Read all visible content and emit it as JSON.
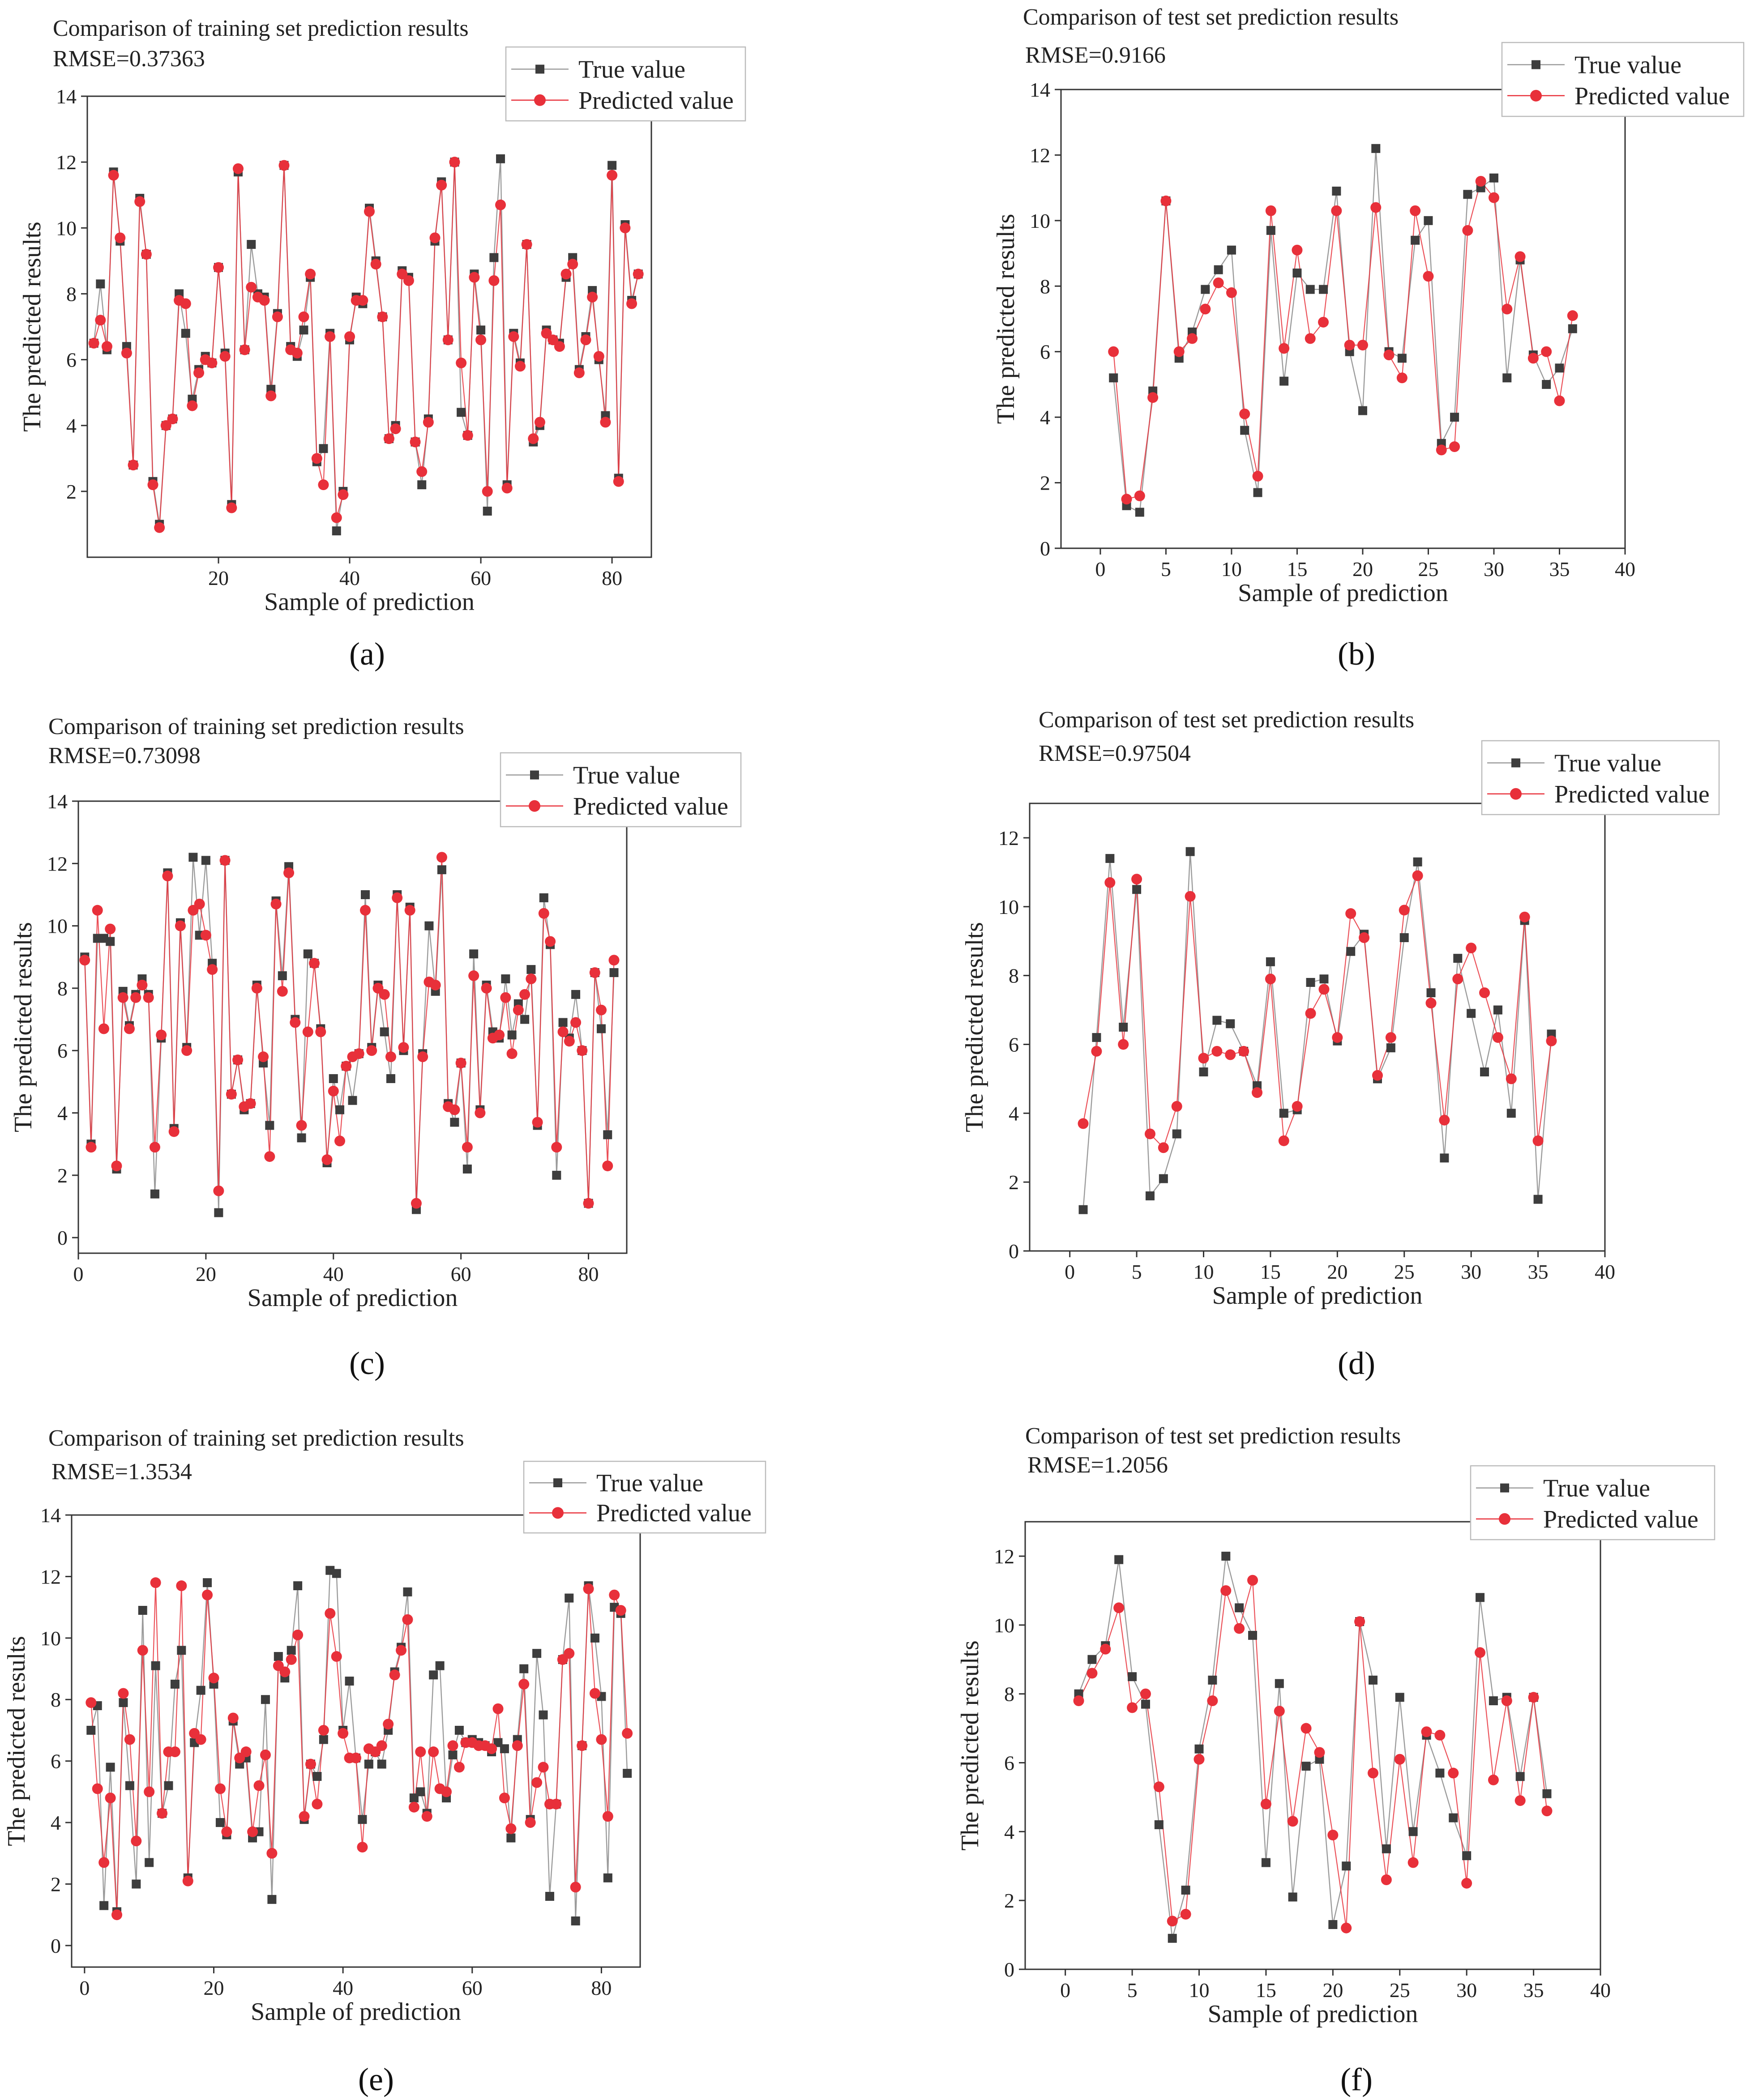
{
  "colors": {
    "true_value": "#3d3d3d",
    "predicted_value": "#e8303a",
    "true_line": "#9a9a9a"
  },
  "chart_data": [
    {
      "type": "line",
      "panel": "(a)",
      "title": "Comparison of training set prediction results",
      "rmse": "RMSE=0.37363",
      "xlabel": "Sample of prediction",
      "ylabel": "The predicted results",
      "xlim": [
        0,
        86
      ],
      "ylim": [
        0,
        14
      ],
      "xticks": [
        20,
        40,
        60,
        80
      ],
      "yticks": [
        2,
        4,
        6,
        8,
        10,
        12,
        14
      ],
      "legend": [
        "True value",
        "Predicted value"
      ],
      "legend_position": "top-right",
      "series": [
        {
          "name": "True value",
          "marker": "square",
          "values": [
            6.5,
            8.3,
            6.3,
            11.7,
            9.6,
            6.4,
            2.8,
            10.9,
            9.2,
            2.3,
            1.0,
            4.0,
            4.2,
            8.0,
            6.8,
            4.8,
            5.7,
            6.1,
            5.9,
            8.8,
            6.2,
            1.6,
            11.7,
            6.3,
            9.5,
            8.0,
            7.9,
            5.1,
            7.4,
            11.9,
            6.4,
            6.1,
            6.9,
            8.5,
            2.9,
            3.3,
            6.8,
            0.8,
            2.0,
            6.6,
            7.9,
            7.7,
            10.6,
            9.0,
            7.3,
            3.6,
            4.0,
            8.7,
            8.5,
            3.5,
            2.2,
            4.2,
            9.6,
            11.4,
            6.6,
            12.0,
            4.4,
            3.7,
            8.6,
            6.9,
            1.4,
            9.1,
            12.1,
            2.2,
            6.8,
            5.9,
            9.5,
            3.5,
            4.0,
            6.9,
            6.6,
            6.5,
            8.5,
            9.1,
            5.7,
            6.7,
            8.1,
            6.0,
            4.3,
            11.9,
            2.4,
            10.1,
            7.8,
            8.6
          ]
        },
        {
          "name": "Predicted value",
          "marker": "circle",
          "values": [
            6.5,
            7.2,
            6.4,
            11.6,
            9.7,
            6.2,
            2.8,
            10.8,
            9.2,
            2.2,
            0.9,
            4.0,
            4.2,
            7.8,
            7.7,
            4.6,
            5.6,
            6.0,
            5.9,
            8.8,
            6.1,
            1.5,
            11.8,
            6.3,
            8.2,
            7.9,
            7.8,
            4.9,
            7.3,
            11.9,
            6.3,
            6.2,
            7.3,
            8.6,
            3.0,
            2.2,
            6.7,
            1.2,
            1.9,
            6.7,
            7.8,
            7.8,
            10.5,
            8.9,
            7.3,
            3.6,
            3.9,
            8.6,
            8.4,
            3.5,
            2.6,
            4.1,
            9.7,
            11.3,
            6.6,
            12.0,
            5.9,
            3.7,
            8.5,
            6.6,
            2.0,
            8.4,
            10.7,
            2.1,
            6.7,
            5.8,
            9.5,
            3.6,
            4.1,
            6.8,
            6.6,
            6.4,
            8.6,
            8.9,
            5.6,
            6.6,
            7.9,
            6.1,
            4.1,
            11.6,
            2.3,
            10.0,
            7.7,
            8.6
          ]
        }
      ]
    },
    {
      "type": "line",
      "panel": "(b)",
      "title": "Comparison of test set prediction results",
      "rmse": "RMSE=0.9166",
      "xlabel": "Sample of prediction",
      "ylabel": "The predicted results",
      "xlim": [
        -3,
        40
      ],
      "ylim": [
        0,
        14
      ],
      "xticks": [
        0,
        5,
        10,
        15,
        20,
        25,
        30,
        35,
        40
      ],
      "yticks": [
        0,
        2,
        4,
        6,
        8,
        10,
        12,
        14
      ],
      "legend": [
        "True value",
        "Predicted value"
      ],
      "legend_position": "top-right",
      "series": [
        {
          "name": "True value",
          "marker": "square",
          "values": [
            5.2,
            1.3,
            1.1,
            4.8,
            10.6,
            5.8,
            6.6,
            7.9,
            8.5,
            9.1,
            3.6,
            1.7,
            9.7,
            5.1,
            8.4,
            7.9,
            7.9,
            10.9,
            6.0,
            4.2,
            12.2,
            6.0,
            5.8,
            9.4,
            10.0,
            3.2,
            4.0,
            10.8,
            11.0,
            11.3,
            5.2,
            8.8,
            5.9,
            5.0,
            5.5,
            6.7
          ]
        },
        {
          "name": "Predicted value",
          "marker": "circle",
          "values": [
            6.0,
            1.5,
            1.6,
            4.6,
            10.6,
            6.0,
            6.4,
            7.3,
            8.1,
            7.8,
            4.1,
            2.2,
            10.3,
            6.1,
            9.1,
            6.4,
            6.9,
            10.3,
            6.2,
            6.2,
            10.4,
            5.9,
            5.2,
            10.3,
            8.3,
            3.0,
            3.1,
            9.7,
            11.2,
            10.7,
            7.3,
            8.9,
            5.8,
            6.0,
            4.5,
            7.1
          ]
        }
      ]
    },
    {
      "type": "line",
      "panel": "(c)",
      "title": "Comparison of training set prediction results",
      "rmse": "RMSE=0.73098",
      "xlabel": "Sample of prediction",
      "ylabel": "The predicted results",
      "xlim": [
        0,
        86
      ],
      "ylim": [
        -0.5,
        14
      ],
      "xticks": [
        0,
        20,
        40,
        60,
        80
      ],
      "yticks": [
        0,
        2,
        4,
        6,
        8,
        10,
        12,
        14
      ],
      "legend": [
        "True value",
        "Predicted value"
      ],
      "legend_position": "top-right",
      "series": [
        {
          "name": "True value",
          "marker": "square",
          "values": [
            9.0,
            3.0,
            9.6,
            9.6,
            9.5,
            2.2,
            7.9,
            6.8,
            7.8,
            8.3,
            7.8,
            1.4,
            6.4,
            11.7,
            3.5,
            10.1,
            6.1,
            12.2,
            9.7,
            12.1,
            8.8,
            0.8,
            12.1,
            4.6,
            5.7,
            4.1,
            4.3,
            8.1,
            5.6,
            3.6,
            10.8,
            8.4,
            11.9,
            7.0,
            3.2,
            9.1,
            8.8,
            6.7,
            2.4,
            5.1,
            4.1,
            5.5,
            4.4,
            5.9,
            11.0,
            6.1,
            8.1,
            6.6,
            5.1,
            11.0,
            6.0,
            10.6,
            0.9,
            5.9,
            10.0,
            7.9,
            11.8,
            4.3,
            3.7,
            5.6,
            2.2,
            9.1,
            4.1,
            8.1,
            6.6,
            6.4,
            8.3,
            6.5,
            7.5,
            7.0,
            8.6,
            3.6,
            10.9,
            9.4,
            2.0,
            6.9,
            6.4,
            7.8,
            6.0,
            1.1,
            8.5,
            6.7,
            3.3,
            8.5
          ]
        },
        {
          "name": "Predicted value",
          "marker": "circle",
          "values": [
            8.9,
            2.9,
            10.5,
            6.7,
            9.9,
            2.3,
            7.7,
            6.7,
            7.7,
            8.1,
            7.7,
            2.9,
            6.5,
            11.6,
            3.4,
            10.0,
            6.0,
            10.5,
            10.7,
            9.7,
            8.6,
            1.5,
            12.1,
            4.6,
            5.7,
            4.2,
            4.3,
            8.0,
            5.8,
            2.6,
            10.7,
            7.9,
            11.7,
            6.9,
            3.6,
            6.6,
            8.8,
            6.6,
            2.5,
            4.7,
            3.1,
            5.5,
            5.8,
            5.9,
            10.5,
            6.0,
            8.0,
            7.8,
            5.8,
            10.9,
            6.1,
            10.5,
            1.1,
            5.8,
            8.2,
            8.1,
            12.2,
            4.2,
            4.1,
            5.6,
            2.9,
            8.4,
            4.0,
            8.0,
            6.4,
            6.5,
            7.7,
            5.9,
            7.3,
            7.8,
            8.3,
            3.7,
            10.4,
            9.5,
            2.9,
            6.6,
            6.3,
            6.9,
            6.0,
            1.1,
            8.5,
            7.3,
            2.3,
            8.9
          ]
        }
      ]
    },
    {
      "type": "line",
      "panel": "(d)",
      "title": "Comparison of test set prediction results",
      "rmse": "RMSE=0.97504",
      "xlabel": "Sample of prediction",
      "ylabel": "The predicted results",
      "xlim": [
        -3,
        40
      ],
      "ylim": [
        0,
        13
      ],
      "xticks": [
        0,
        5,
        10,
        15,
        20,
        25,
        30,
        35,
        40
      ],
      "yticks": [
        0,
        2,
        4,
        6,
        8,
        10,
        12
      ],
      "legend": [
        "True value",
        "Predicted value"
      ],
      "legend_position": "top-right",
      "series": [
        {
          "name": "True value",
          "marker": "square",
          "values": [
            1.2,
            6.2,
            11.4,
            6.5,
            10.5,
            1.6,
            2.1,
            3.4,
            11.6,
            5.2,
            6.7,
            6.6,
            5.8,
            4.8,
            8.4,
            4.0,
            4.1,
            7.8,
            7.9,
            6.1,
            8.7,
            9.2,
            5.0,
            5.9,
            9.1,
            11.3,
            7.5,
            2.7,
            8.5,
            6.9,
            5.2,
            7.0,
            4.0,
            9.6,
            1.5,
            6.3
          ]
        },
        {
          "name": "Predicted value",
          "marker": "circle",
          "values": [
            3.7,
            5.8,
            10.7,
            6.0,
            10.8,
            3.4,
            3.0,
            4.2,
            10.3,
            5.6,
            5.8,
            5.7,
            5.8,
            4.6,
            7.9,
            3.2,
            4.2,
            6.9,
            7.6,
            6.2,
            9.8,
            9.1,
            5.1,
            6.2,
            9.9,
            10.9,
            7.2,
            3.8,
            7.9,
            8.8,
            7.5,
            6.2,
            5.0,
            9.7,
            3.2,
            6.1
          ]
        }
      ]
    },
    {
      "type": "line",
      "panel": "(e)",
      "title": "Comparison of training set prediction results",
      "rmse": "RMSE=1.3534",
      "xlabel": "Sample of prediction",
      "ylabel": "The predicted results",
      "xlim": [
        -2,
        86
      ],
      "ylim": [
        -0.7,
        14
      ],
      "xticks": [
        0,
        20,
        40,
        60,
        80
      ],
      "yticks": [
        0,
        2,
        4,
        6,
        8,
        10,
        12,
        14
      ],
      "legend": [
        "True value",
        "Predicted value"
      ],
      "legend_position": "top-right",
      "series": [
        {
          "name": "True value",
          "marker": "square",
          "values": [
            7.0,
            7.8,
            1.3,
            5.8,
            1.1,
            7.9,
            5.2,
            2.0,
            10.9,
            2.7,
            9.1,
            4.3,
            5.2,
            8.5,
            9.6,
            2.2,
            6.6,
            8.3,
            11.8,
            8.5,
            4.0,
            3.6,
            7.3,
            5.9,
            6.1,
            3.5,
            3.7,
            8.0,
            1.5,
            9.4,
            8.7,
            9.6,
            11.7,
            4.1,
            5.9,
            5.5,
            6.7,
            12.2,
            12.1,
            7.0,
            8.6,
            6.1,
            4.1,
            5.9,
            6.3,
            5.9,
            7.0,
            8.9,
            9.7,
            11.5,
            4.8,
            5.0,
            4.3,
            8.8,
            9.1,
            4.8,
            6.2,
            7.0,
            6.6,
            6.7,
            6.6,
            6.5,
            6.3,
            6.6,
            6.4,
            3.5,
            6.7,
            9.0,
            4.1,
            9.5,
            7.5,
            1.6,
            4.6,
            9.3,
            11.3,
            0.8,
            6.5,
            11.7,
            10.0,
            8.1,
            2.2,
            11.0,
            10.8,
            5.6
          ]
        },
        {
          "name": "Predicted value",
          "marker": "circle",
          "values": [
            7.9,
            5.1,
            2.7,
            4.8,
            1.0,
            8.2,
            6.7,
            3.4,
            9.6,
            5.0,
            11.8,
            4.3,
            6.3,
            6.3,
            11.7,
            2.1,
            6.9,
            6.7,
            11.4,
            8.7,
            5.1,
            3.7,
            7.4,
            6.1,
            6.3,
            3.7,
            5.2,
            6.2,
            3.0,
            9.1,
            8.9,
            9.3,
            10.1,
            4.2,
            5.9,
            4.6,
            7.0,
            10.8,
            9.4,
            6.9,
            6.1,
            6.1,
            3.2,
            6.4,
            6.3,
            6.5,
            7.2,
            8.8,
            9.6,
            10.6,
            4.5,
            6.3,
            4.2,
            6.3,
            5.1,
            5.0,
            6.5,
            5.8,
            6.6,
            6.6,
            6.5,
            6.5,
            6.4,
            7.7,
            4.8,
            3.8,
            6.5,
            8.5,
            4.0,
            5.3,
            5.8,
            4.6,
            4.6,
            9.3,
            9.5,
            1.9,
            6.5,
            11.6,
            8.2,
            6.7,
            4.2,
            11.4,
            10.9,
            6.9
          ]
        }
      ]
    },
    {
      "type": "line",
      "panel": "(f)",
      "title": "Comparison of test set prediction results",
      "rmse": "RMSE=1.2056",
      "xlabel": "Sample of prediction",
      "ylabel": "The predicted results",
      "xlim": [
        -3,
        40
      ],
      "ylim": [
        0,
        13
      ],
      "xticks": [
        0,
        5,
        10,
        15,
        20,
        25,
        30,
        35,
        40
      ],
      "yticks": [
        0,
        2,
        4,
        6,
        8,
        10,
        12
      ],
      "legend": [
        "True value",
        "Predicted value"
      ],
      "legend_position": "top-right",
      "series": [
        {
          "name": "True value",
          "marker": "square",
          "values": [
            8.0,
            9.0,
            9.4,
            11.9,
            8.5,
            7.7,
            4.2,
            0.9,
            2.3,
            6.4,
            8.4,
            12.0,
            10.5,
            9.7,
            3.1,
            8.3,
            2.1,
            5.9,
            6.1,
            1.3,
            3.0,
            10.1,
            8.4,
            3.5,
            7.9,
            4.0,
            6.8,
            5.7,
            4.4,
            3.3,
            10.8,
            7.8,
            7.9,
            5.6,
            7.9,
            5.1
          ]
        },
        {
          "name": "Predicted value",
          "marker": "circle",
          "values": [
            7.8,
            8.6,
            9.3,
            10.5,
            7.6,
            8.0,
            5.3,
            1.4,
            1.6,
            6.1,
            7.8,
            11.0,
            9.9,
            11.3,
            4.8,
            7.5,
            4.3,
            7.0,
            6.3,
            3.9,
            1.2,
            10.1,
            5.7,
            2.6,
            6.1,
            3.1,
            6.9,
            6.8,
            5.7,
            2.5,
            9.2,
            5.5,
            7.8,
            4.9,
            7.9,
            4.6
          ]
        }
      ]
    }
  ]
}
